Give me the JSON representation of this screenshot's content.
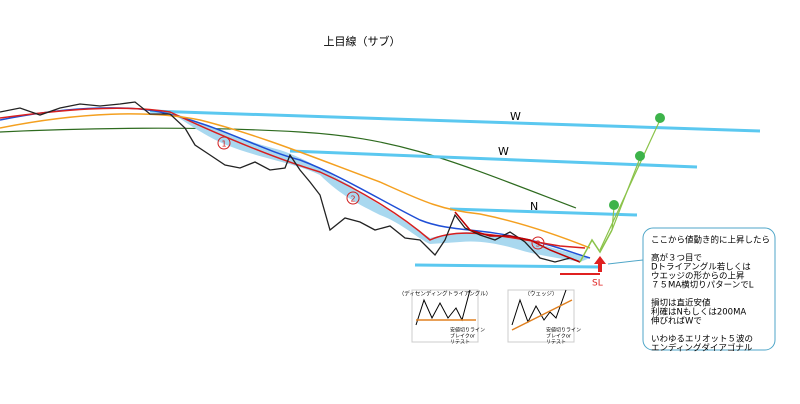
{
  "title": "上目線（サブ）",
  "levels": {
    "w1": "W",
    "w2": "W",
    "n": "N",
    "sl": "SL"
  },
  "waves": [
    "1",
    "2",
    "3"
  ],
  "note": [
    [
      "ここから値動き的に上昇したら"
    ],
    [
      "高が３つ目で",
      "Dトライアングル若しくは",
      "ウエッジの形からの上昇",
      "７５MA横切りパターンでL"
    ],
    [
      "損切は直近安値",
      "利確はNもしくは200MA",
      "伸びればWで"
    ],
    [
      "いわゆるエリオット５波の",
      "エンディングダイアゴナル"
    ]
  ],
  "patterns": [
    {
      "title": "（ディセンディングトライアングル）",
      "label": [
        "安値切りライン",
        "ブレイクor",
        "リテスト"
      ]
    },
    {
      "title": "（ウェッジ）",
      "label": [
        "安値切りライン",
        "ブレイクor",
        "リテスト"
      ]
    }
  ]
}
